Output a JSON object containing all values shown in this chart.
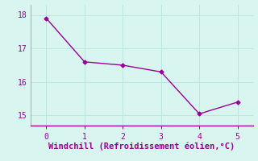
{
  "x": [
    0,
    1,
    2,
    3,
    4,
    5
  ],
  "y": [
    17.9,
    16.6,
    16.5,
    16.3,
    15.05,
    15.4
  ],
  "line_color": "#990099",
  "marker": "D",
  "marker_size": 2.5,
  "linewidth": 1.0,
  "xlabel": "Windchill (Refroidissement éolien,°C)",
  "xlabel_color": "#990099",
  "xlabel_fontsize": 7.5,
  "bg_color": "#d9f5f0",
  "grid_color": "#b8e8e0",
  "ylim": [
    14.7,
    18.3
  ],
  "xlim": [
    -0.4,
    5.4
  ],
  "yticks": [
    15,
    16,
    17,
    18
  ],
  "xticks": [
    0,
    1,
    2,
    3,
    4,
    5
  ],
  "tick_fontsize": 7,
  "tick_color": "#990099",
  "spine_color": "#aaaaaa",
  "axis_line_color": "#990099"
}
